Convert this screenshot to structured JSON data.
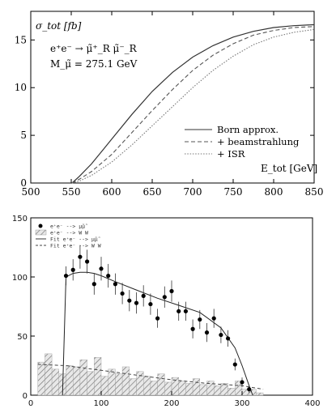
{
  "chart_data": [
    {
      "type": "line",
      "ylabel": "σ_tot [fb]",
      "xlabel": "E_tot [GeV]",
      "xlim": [
        500,
        850
      ],
      "ylim": [
        0,
        18
      ],
      "x_ticks": [
        "500",
        "550",
        "600",
        "650",
        "700",
        "750",
        "800",
        "850"
      ],
      "y_ticks": [
        "0",
        "5",
        "10",
        "15"
      ],
      "annotation": {
        "process": "e⁺e⁻ → μ̃⁺_R μ̃⁻_R",
        "mass": "M_μ̃ = 275.1 GeV"
      },
      "legend_position": "bottom-right",
      "x": [
        551,
        560,
        575,
        600,
        625,
        650,
        675,
        700,
        725,
        750,
        775,
        800,
        825,
        850
      ],
      "series": [
        {
          "name": "Born approx.",
          "style": "solid",
          "color": "#333333",
          "values": [
            0.0,
            0.7,
            2.0,
            4.6,
            7.2,
            9.6,
            11.6,
            13.2,
            14.4,
            15.3,
            15.9,
            16.3,
            16.5,
            16.6
          ]
        },
        {
          "name": "+ beamstrahlung",
          "style": "dashed",
          "color": "#555555",
          "values": [
            0.0,
            0.4,
            1.2,
            3.0,
            5.3,
            7.6,
            9.8,
            11.8,
            13.4,
            14.6,
            15.5,
            16.0,
            16.3,
            16.4
          ]
        },
        {
          "name": "+ ISR",
          "style": "dotted",
          "color": "#777777",
          "values": [
            0.0,
            0.2,
            0.8,
            2.2,
            4.0,
            6.0,
            8.0,
            10.0,
            11.8,
            13.3,
            14.5,
            15.3,
            15.8,
            16.1
          ]
        }
      ]
    },
    {
      "type": "histogram",
      "xlim": [
        0,
        400
      ],
      "ylim": [
        0,
        150
      ],
      "x_ticks": [
        "0",
        "100",
        "200",
        "300",
        "400"
      ],
      "y_ticks": [
        "0",
        "50",
        "100",
        "150"
      ],
      "legend_position": "top-left",
      "legend": [
        {
          "symbol": "dot",
          "label": "e⁺e⁻ --> μ̃μ̃"
        },
        {
          "symbol": "hatch",
          "label": "e⁺e⁻ --> W W"
        },
        {
          "symbol": "solid-line",
          "label": "Fit  e⁺e⁻ --> μ̃μ̃"
        },
        {
          "symbol": "dashed-line",
          "label": "Fit  e⁺e⁻ --> W W"
        }
      ],
      "points": {
        "name": "e⁺e⁻ → μ̃μ̃",
        "x": [
          50,
          60,
          70,
          80,
          90,
          100,
          110,
          120,
          130,
          140,
          150,
          160,
          170,
          180,
          190,
          200,
          210,
          220,
          230,
          240,
          250,
          260,
          270,
          280,
          290,
          300,
          310
        ],
        "y": [
          101,
          106,
          117,
          113,
          94,
          107,
          101,
          94,
          86,
          80,
          78,
          84,
          77,
          65,
          83,
          88,
          71,
          71,
          56,
          64,
          53,
          65,
          51,
          48,
          26,
          11,
          5
        ],
        "err": [
          8,
          9,
          10,
          10,
          9,
          10,
          10,
          9,
          9,
          9,
          9,
          9,
          9,
          8,
          9,
          9,
          8,
          8,
          8,
          8,
          8,
          8,
          7,
          7,
          5,
          4,
          3
        ]
      },
      "background_hist": {
        "name": "e⁺e⁻ → W W",
        "bin_edges": [
          10,
          20,
          30,
          40,
          50,
          60,
          70,
          80,
          90,
          100,
          110,
          120,
          130,
          140,
          150,
          160,
          170,
          180,
          190,
          200,
          210,
          220,
          230,
          240,
          250,
          260,
          270,
          280,
          290,
          300,
          310,
          320,
          330
        ],
        "counts": [
          28,
          35,
          22,
          18,
          25,
          24,
          30,
          20,
          32,
          16,
          22,
          18,
          24,
          14,
          20,
          16,
          12,
          18,
          11,
          15,
          12,
          10,
          14,
          9,
          12,
          8,
          10,
          6,
          12,
          5,
          5,
          2
        ]
      },
      "fit_signal": {
        "name": "Fit e⁺e⁻ → μ̃μ̃",
        "x": [
          45,
          50,
          60,
          70,
          80,
          90,
          100,
          120,
          150,
          180,
          210,
          240,
          270,
          290,
          300,
          310,
          315
        ],
        "y": [
          0,
          100,
          103,
          104,
          104,
          103,
          101,
          96,
          89,
          82,
          76,
          70,
          57,
          40,
          25,
          8,
          0
        ]
      },
      "fit_background": {
        "name": "Fit e⁺e⁻ → W W",
        "x": [
          10,
          50,
          100,
          150,
          200,
          250,
          300,
          330
        ],
        "y": [
          26,
          25,
          21,
          17,
          13,
          10,
          8,
          5
        ]
      }
    }
  ]
}
